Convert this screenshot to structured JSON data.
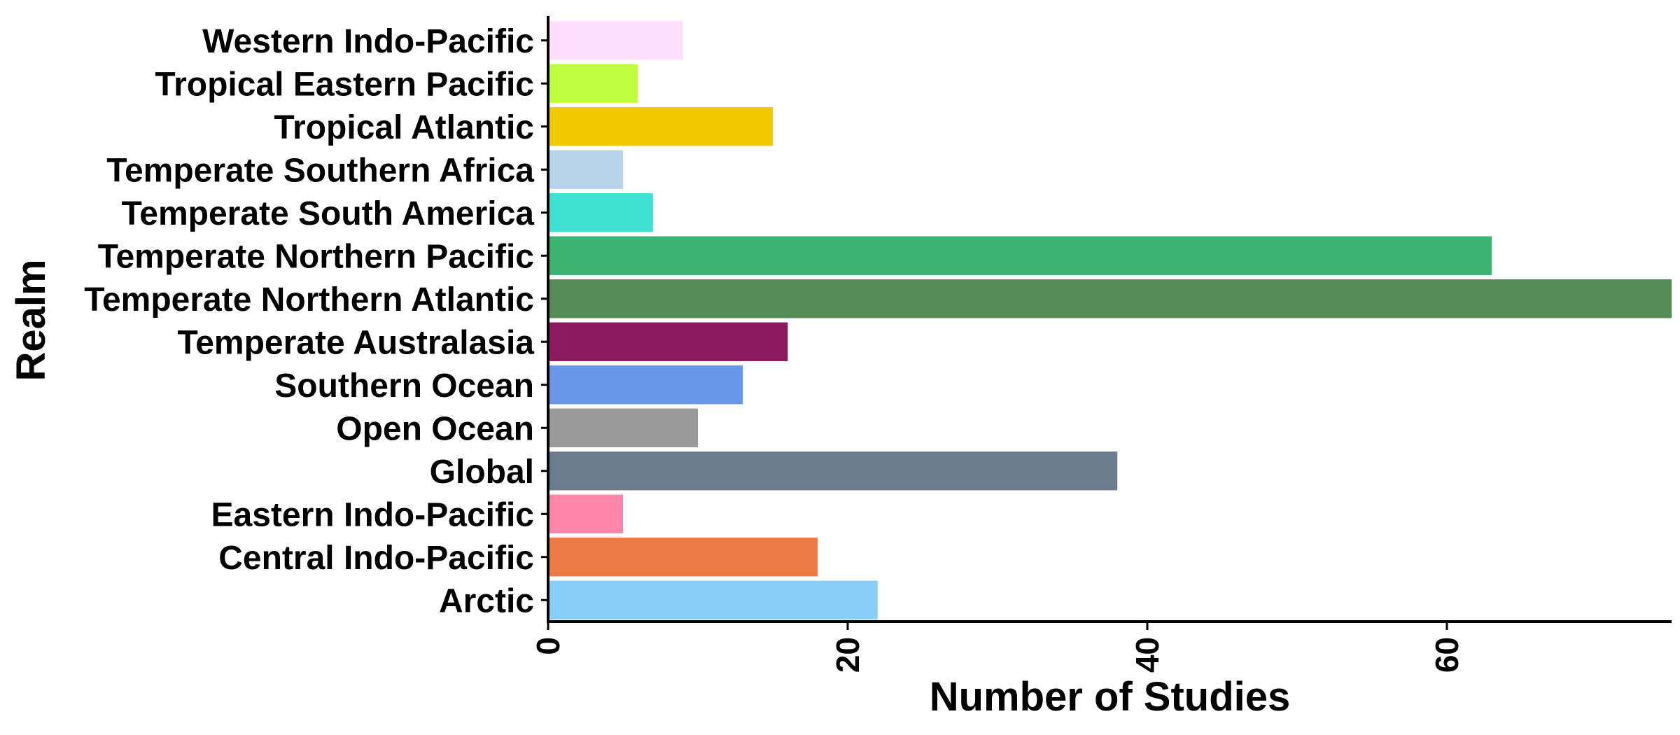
{
  "chart_data": {
    "type": "bar",
    "orientation": "horizontal",
    "title": "",
    "xlabel": "Number of Studies",
    "ylabel": "Realm",
    "xlim": [
      0,
      75
    ],
    "xticks": [
      0,
      20,
      40,
      60
    ],
    "grid": false,
    "legend": "none",
    "categories": [
      "Arctic",
      "Central Indo-Pacific",
      "Eastern Indo-Pacific",
      "Global",
      "Open Ocean",
      "Southern Ocean",
      "Temperate Australasia",
      "Temperate Northern Atlantic",
      "Temperate Northern Pacific",
      "Temperate South America",
      "Temperate Southern Africa",
      "Tropical Atlantic",
      "Tropical Eastern Pacific",
      "Western Indo-Pacific"
    ],
    "values": [
      22,
      18,
      5,
      38,
      10,
      13,
      16,
      75,
      63,
      7,
      5,
      15,
      6,
      9
    ],
    "colors": [
      "#87CEFA",
      "#ED7A45",
      "#FF85AA",
      "#6B7B8C",
      "#999999",
      "#6897EA",
      "#8B1A5E",
      "#558B55",
      "#3CB371",
      "#40E0D0",
      "#B8D4ED",
      "#EEC900",
      "#BFFF3F",
      "#FFDFFC"
    ]
  }
}
